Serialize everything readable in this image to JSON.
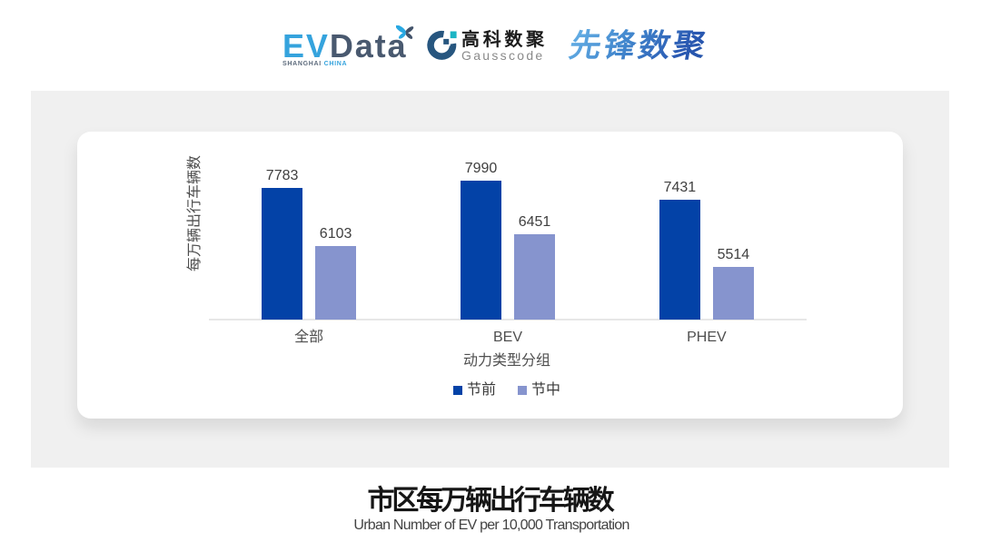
{
  "header": {
    "logos": {
      "evdata": {
        "ev": "EV",
        "data": "Data",
        "sub_left": "SHANGHAI",
        "sub_right": "CHINA"
      },
      "gausscode": {
        "cn": "高科数聚",
        "en": "Gausscode"
      },
      "pioneer": {
        "text": "先锋数聚"
      }
    }
  },
  "chart_data": {
    "type": "bar",
    "title": "市区每万辆出行车辆数",
    "subtitle": "Urban Number of EV per 10,000 Transportation",
    "categories": [
      "全部",
      "BEV",
      "PHEV"
    ],
    "series": [
      {
        "name": "节前",
        "color": "#0342a7",
        "values": [
          7783,
          7990,
          7431
        ]
      },
      {
        "name": "节中",
        "color": "#8694ce",
        "values": [
          6103,
          6451,
          5514
        ]
      }
    ],
    "xlabel": "动力类型分组",
    "ylabel": "每万辆出行车辆数",
    "ylim": [
      4000,
      8200
    ],
    "grid": false,
    "legend_position": "bottom",
    "bar_labels": true
  },
  "colors": {
    "panel_bg": "#f0f0f0",
    "card_bg": "#ffffff",
    "axis_line": "#e7e7e7",
    "value_label": "#3f3f3f"
  }
}
